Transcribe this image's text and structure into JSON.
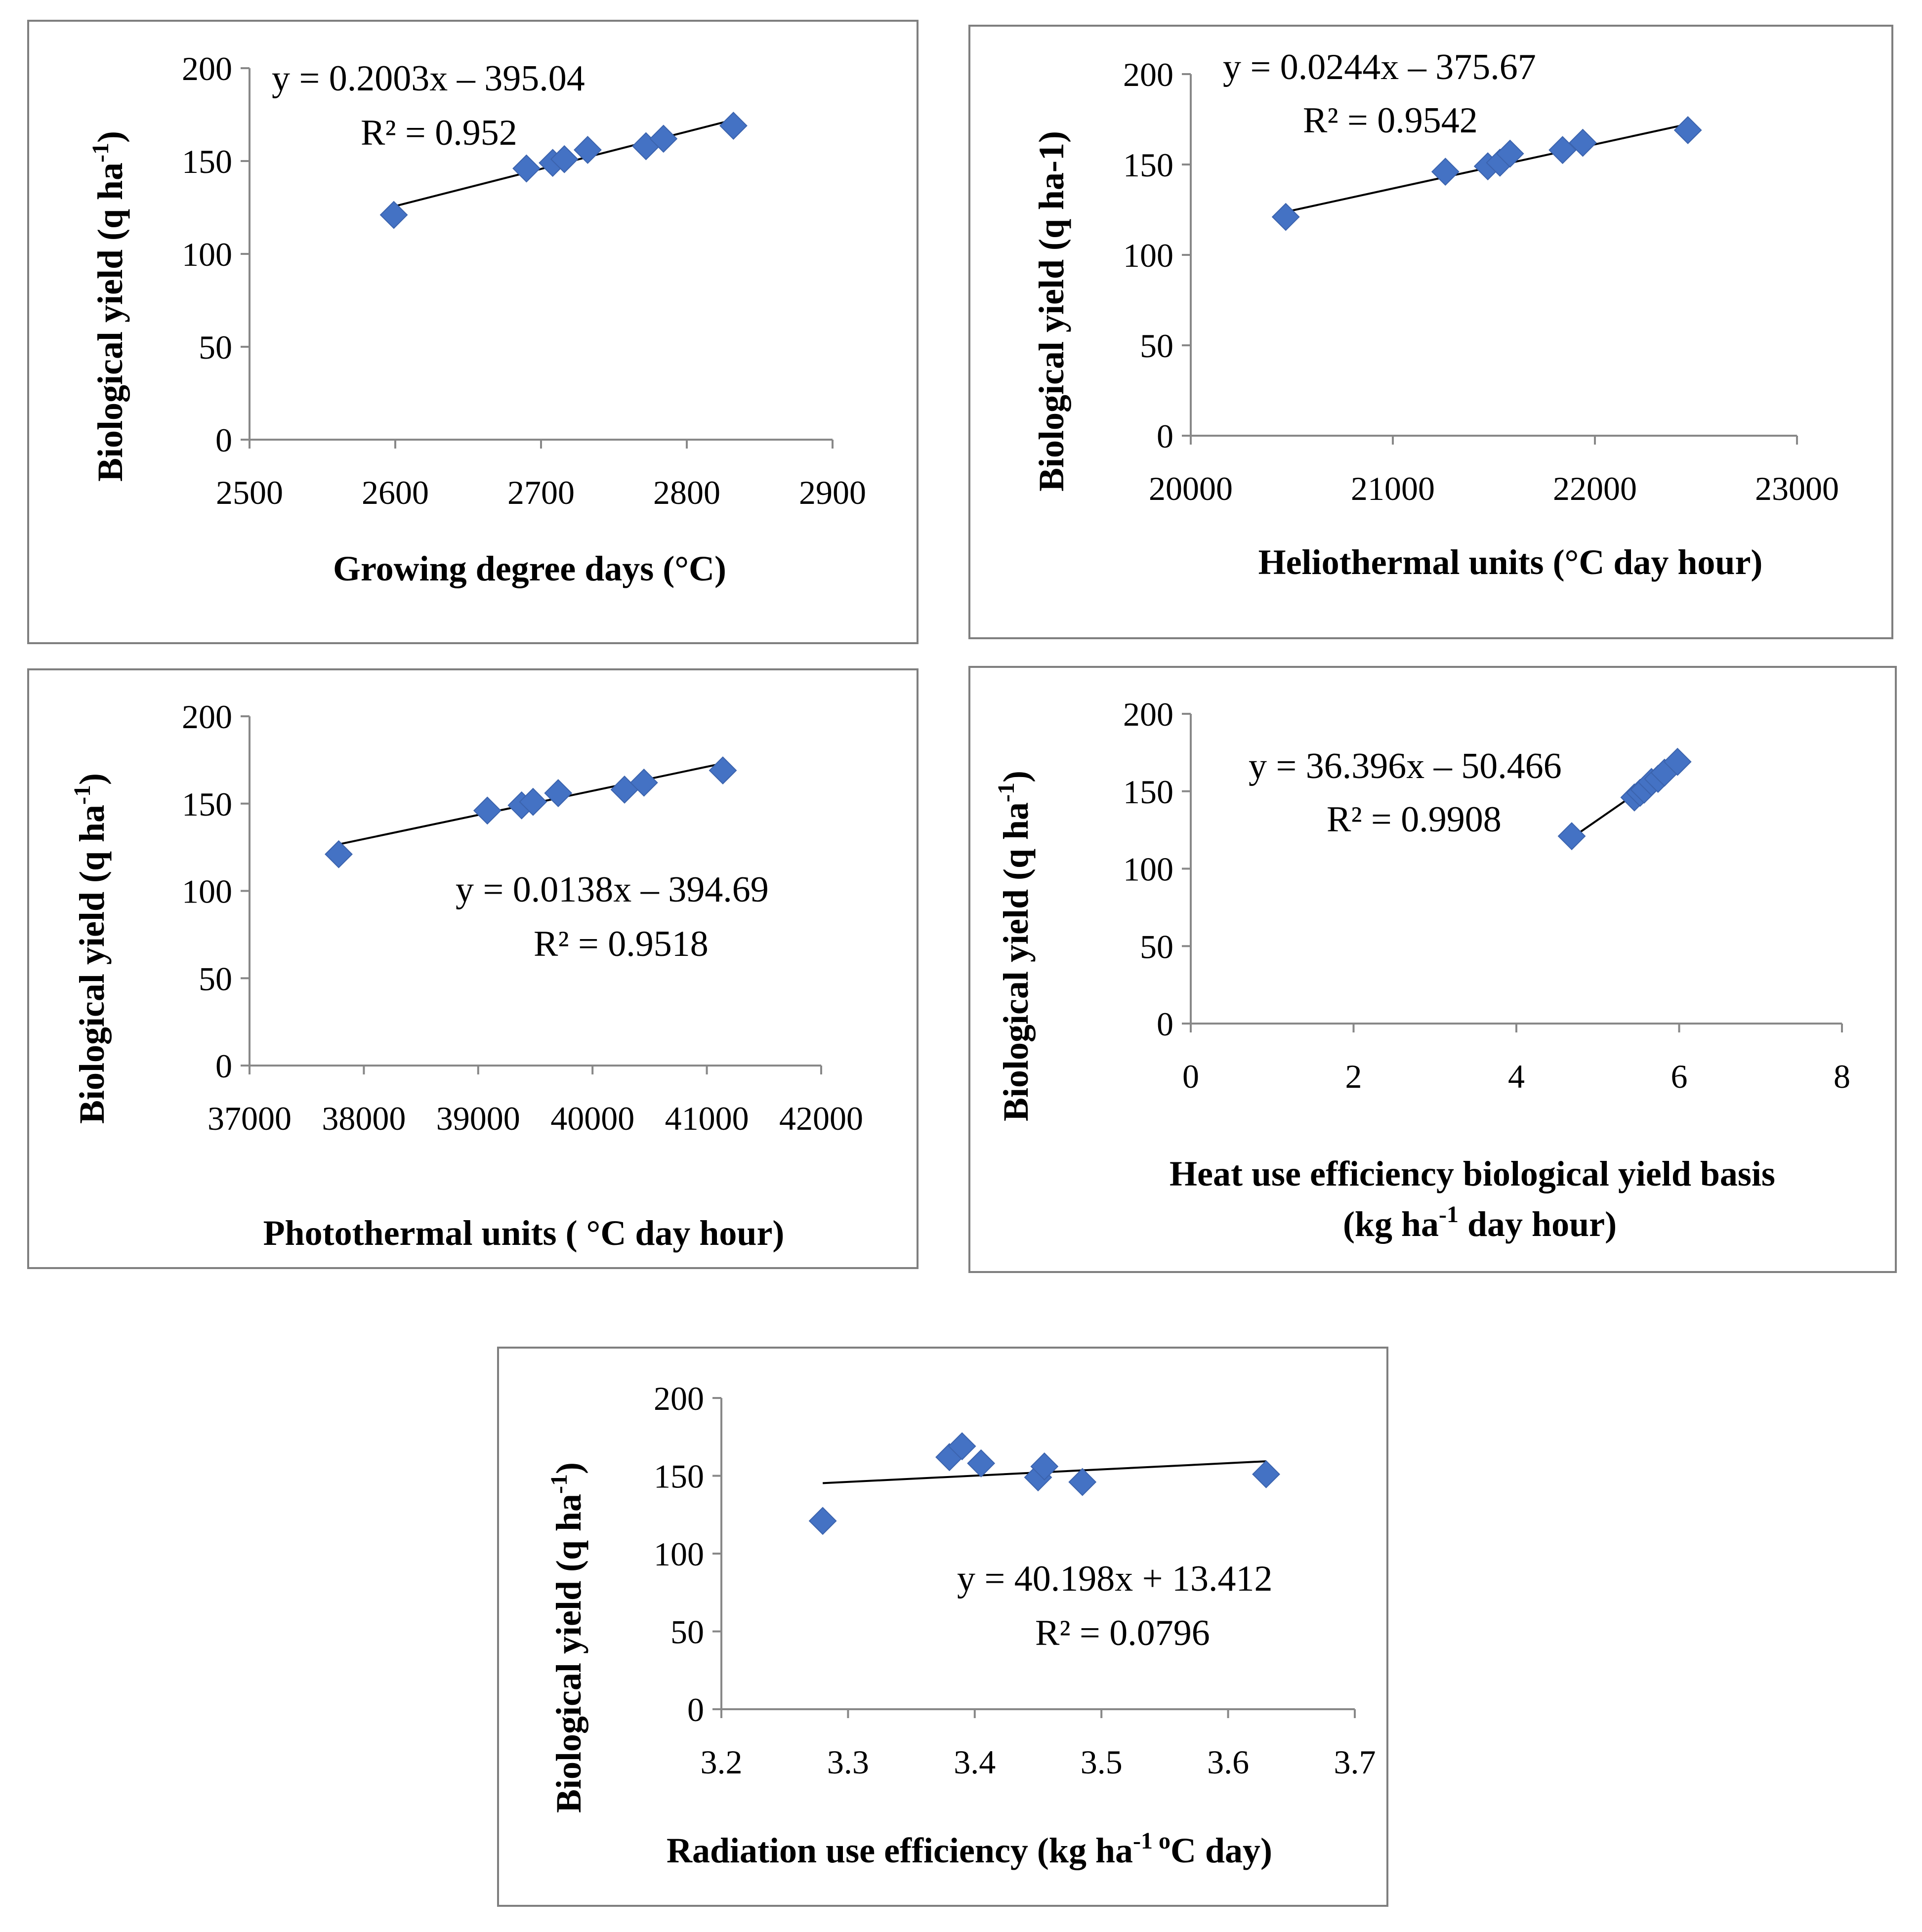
{
  "colors": {
    "marker": "#4472C4",
    "trendline": "#000000",
    "axis": "#888888",
    "frame": "#7f7f7f"
  },
  "chart_data": [
    {
      "type": "scatter",
      "id": "gdd",
      "xlabel": "Growing degree days (°C)",
      "ylabel_main": "Biological yield (q ha",
      "ylabel_sup": "-1",
      "ylabel_end": ")",
      "xlim": [
        2500,
        2900
      ],
      "xticks": [
        2500,
        2600,
        2700,
        2800,
        2900
      ],
      "ylim": [
        0,
        200
      ],
      "yticks": [
        0,
        50,
        100,
        150,
        200
      ],
      "x": [
        2599,
        2690,
        2708,
        2716,
        2732,
        2772,
        2784,
        2832
      ],
      "y": [
        121,
        146,
        149,
        151,
        156,
        158,
        162,
        169
      ],
      "trend": {
        "slope": 0.2003,
        "intercept": -395.04,
        "x_from": 2599,
        "x_to": 2832
      },
      "equation": "y = 0.2003x – 395.04",
      "r2": "R² = 0.952"
    },
    {
      "type": "scatter",
      "id": "htu",
      "xlabel": "Heliothermal units (°C day hour)",
      "ylabel_main": "Biological yield (q ha-1)",
      "ylabel_sup": "",
      "ylabel_end": "",
      "xlim": [
        20000,
        23000
      ],
      "xticks": [
        20000,
        21000,
        22000,
        23000
      ],
      "ylim": [
        0,
        200
      ],
      "yticks": [
        0,
        50,
        100,
        150,
        200
      ],
      "x": [
        20470,
        21260,
        21470,
        21530,
        21580,
        21840,
        21940,
        22460
      ],
      "y": [
        121,
        146,
        149,
        151,
        156,
        158,
        162,
        169
      ],
      "trend": {
        "slope": 0.0244,
        "intercept": -375.67,
        "x_from": 20470,
        "x_to": 22460
      },
      "equation": "y = 0.0244x – 375.67",
      "r2": "R² = 0.9542"
    },
    {
      "type": "scatter",
      "id": "ptu",
      "xlabel": "Photothermal units ( °C day hour)",
      "ylabel_main": "Biological yield (q ha",
      "ylabel_sup": "-1",
      "ylabel_end": ")",
      "xlim": [
        37000,
        42000
      ],
      "xticks": [
        37000,
        38000,
        39000,
        40000,
        41000,
        42000
      ],
      "ylim": [
        0,
        200
      ],
      "yticks": [
        0,
        50,
        100,
        150,
        200
      ],
      "x": [
        37780,
        39080,
        39380,
        39480,
        39700,
        40280,
        40450,
        41140
      ],
      "y": [
        121,
        146,
        149,
        151,
        156,
        158,
        162,
        169
      ],
      "trend": {
        "slope": 0.0138,
        "intercept": -394.69,
        "x_from": 37780,
        "x_to": 41140
      },
      "equation": "y = 0.0138x – 394.69",
      "r2": "R² = 0.9518"
    },
    {
      "type": "scatter",
      "id": "hue",
      "xlabel": "Heat use efficiency  biological yield basis",
      "xlabel2_main": "(kg ha",
      "xlabel2_sup": "-1",
      "xlabel2_end": " day hour)",
      "ylabel_main": "Biological yield (q ha",
      "ylabel_sup": "-1",
      "ylabel_end": ")",
      "xlim": [
        0,
        8
      ],
      "xticks": [
        0,
        2,
        4,
        6,
        8
      ],
      "ylim": [
        0,
        200
      ],
      "yticks": [
        0,
        50,
        100,
        150,
        200
      ],
      "x": [
        4.68,
        5.45,
        5.52,
        5.57,
        5.66,
        5.74,
        5.82,
        5.98
      ],
      "y": [
        121,
        146,
        149,
        151,
        156,
        158,
        162,
        169
      ],
      "trend": {
        "slope": 36.396,
        "intercept": -50.466,
        "x_from": 4.7,
        "x_to": 6.0
      },
      "equation": "y = 36.396x – 50.466",
      "r2": "R² = 0.9908"
    },
    {
      "type": "scatter",
      "id": "rue",
      "xlabel_main": "Radiation use efficiency (kg ha",
      "xlabel_sup": "-1 o",
      "xlabel_end": "C day)",
      "ylabel_main": "Biological yield (q ha",
      "ylabel_sup": "-1",
      "ylabel_end": ")",
      "xlim": [
        3.2,
        3.7
      ],
      "xticks": [
        3.2,
        3.3,
        3.4,
        3.5,
        3.6,
        3.7
      ],
      "ylim": [
        0,
        200
      ],
      "yticks": [
        0,
        50,
        100,
        150,
        200
      ],
      "x": [
        3.28,
        3.38,
        3.39,
        3.405,
        3.45,
        3.455,
        3.485,
        3.63
      ],
      "y": [
        121,
        162,
        169,
        158,
        149,
        156,
        146,
        151
      ],
      "trend": {
        "slope": 40.198,
        "intercept": 13.412,
        "x_from": 3.28,
        "x_to": 3.63
      },
      "equation": "y = 40.198x + 13.412",
      "r2": "R² = 0.0796"
    }
  ]
}
